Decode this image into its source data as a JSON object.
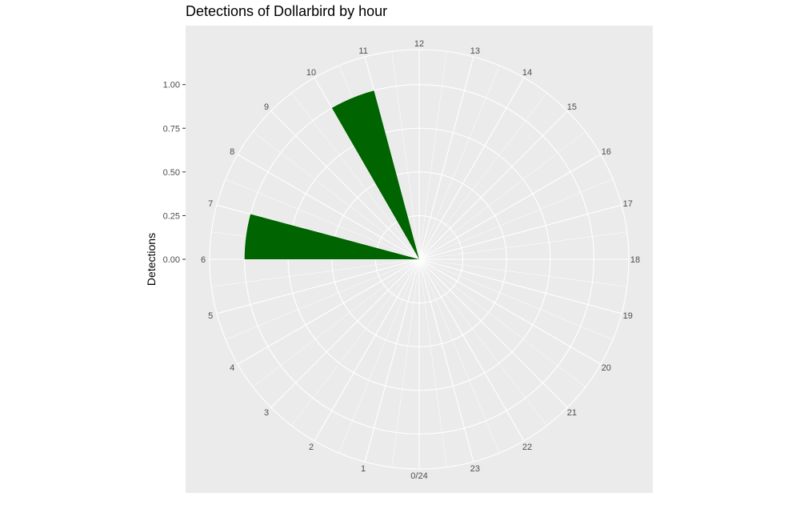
{
  "chart_data": {
    "type": "bar",
    "coord": "polar",
    "title": "Detections of Dollarbird by hour",
    "ylabel": "Detections",
    "xlabel": "",
    "ylim": [
      0,
      1.2
    ],
    "y_ticks": [
      "0.00",
      "0.25",
      "0.50",
      "0.75",
      "1.00"
    ],
    "y_tick_values": [
      0,
      0.25,
      0.5,
      0.75,
      1.0
    ],
    "hour_labels": [
      "0/24",
      "1",
      "2",
      "3",
      "4",
      "5",
      "6",
      "7",
      "8",
      "9",
      "10",
      "11",
      "12",
      "13",
      "14",
      "15",
      "16",
      "17",
      "18",
      "19",
      "20",
      "21",
      "22",
      "23"
    ],
    "categories": [
      6,
      10
    ],
    "values": [
      1.0,
      1.0
    ],
    "bar_color": "#006400",
    "panel_color": "#ebebeb",
    "grid_color": "#ffffff",
    "grid": true
  }
}
